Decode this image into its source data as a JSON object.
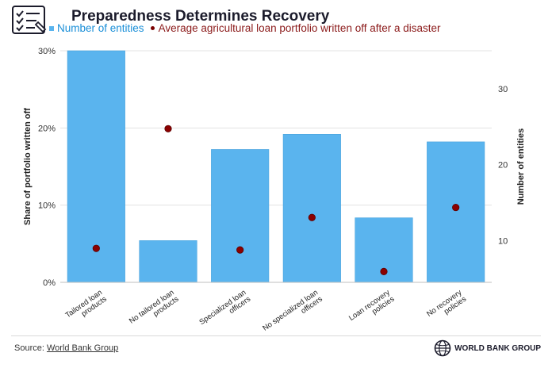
{
  "header": {
    "title": "Preparedness Determines Recovery",
    "icon": "checklist-icon"
  },
  "legend": {
    "bar_label": "Number of entities",
    "dot_label": "Average agricultural loan portfolio written off after a disaster"
  },
  "footer": {
    "source_prefix": "Source: ",
    "source_link": "World Bank Group",
    "brand": "WORLD BANK GROUP"
  },
  "colors": {
    "bar": "#5ab4ee",
    "dot": "#8b0000",
    "grid": "#e3e3e3"
  },
  "chart_data": {
    "type": "bar",
    "categories": [
      [
        "Tailored loan",
        "products"
      ],
      [
        "No tailored loan",
        "products"
      ],
      [
        "Specialized loan",
        "officers"
      ],
      [
        "No specialized loan",
        "officers"
      ],
      [
        "Loan recovery",
        "policies"
      ],
      [
        "No recovery",
        "policies"
      ]
    ],
    "series": [
      {
        "name": "Number of entities",
        "type": "bar",
        "axis": "right",
        "values": [
          35,
          10,
          22,
          24,
          13,
          23
        ]
      },
      {
        "name": "Average agricultural loan portfolio written off after a disaster",
        "type": "scatter",
        "axis": "left",
        "values": [
          0.044,
          0.199,
          0.042,
          0.084,
          0.014,
          0.097
        ]
      }
    ],
    "ylabel_left": "Share of portfolio written off",
    "ylabel_right": "Number of entities",
    "ylim_left": [
      0,
      0.3
    ],
    "yticks_left": [
      "0%",
      "10%",
      "20%",
      "30%"
    ],
    "ylim_right": [
      4.5,
      35
    ],
    "yticks_right": [
      "10",
      "20",
      "30"
    ],
    "grid": true,
    "legend_position": "top"
  }
}
